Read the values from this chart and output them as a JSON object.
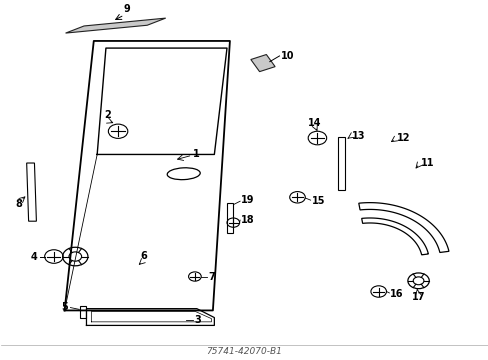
{
  "bg_color": "#ffffff",
  "line_color": "#000000",
  "fig_width": 4.89,
  "fig_height": 3.6,
  "dpi": 100,
  "part_number": "75741-42070-B1"
}
